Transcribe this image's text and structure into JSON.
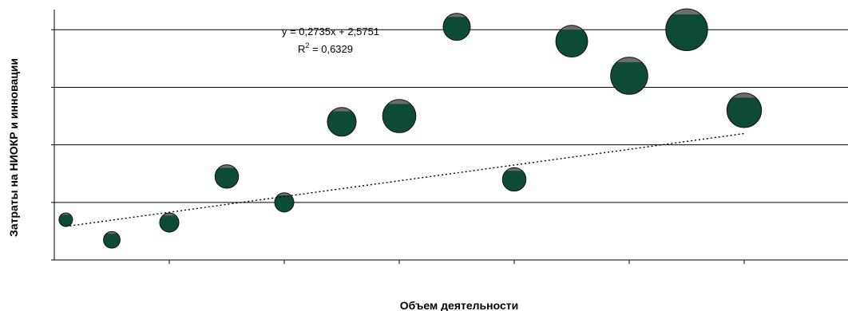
{
  "chart_data": {
    "type": "bubble",
    "xlabel": "Объем деятельности",
    "ylabel": "Затраты на НИОКР и инновации",
    "xlim": [
      0,
      7
    ],
    "ylim": [
      0,
      4.35
    ],
    "x_gridlines": [
      1,
      2,
      3,
      4,
      5,
      6
    ],
    "y_gridlines": [
      1,
      2,
      3,
      4
    ],
    "horizontal_grid": true,
    "tick_labels_shown": false,
    "trendline": {
      "style": "dotted",
      "slope": 0.2735,
      "intercept": 2.5751,
      "equation": "y = 0,2735x + 2,5751",
      "r2_prefix": "R",
      "r2_sup": "2",
      "r2_value": " = 0,6329"
    },
    "colors": {
      "bubble_fill": "#0e4a38",
      "bubble_highlight": "#6d6d6d",
      "bubble_edge": "#111111",
      "grid": "#000000",
      "trendline": "#000000"
    },
    "points": [
      {
        "x": 0.1,
        "y": 0.7,
        "size": 1.0
      },
      {
        "x": 0.5,
        "y": 0.35,
        "size": 1.5
      },
      {
        "x": 1.0,
        "y": 0.65,
        "size": 2.0
      },
      {
        "x": 1.5,
        "y": 1.45,
        "size": 3.0
      },
      {
        "x": 2.0,
        "y": 1.0,
        "size": 2.0
      },
      {
        "x": 2.5,
        "y": 2.4,
        "size": 4.5
      },
      {
        "x": 3.0,
        "y": 2.5,
        "size": 6.0
      },
      {
        "x": 3.5,
        "y": 4.05,
        "size": 4.0
      },
      {
        "x": 4.0,
        "y": 1.4,
        "size": 3.0
      },
      {
        "x": 4.5,
        "y": 3.8,
        "size": 5.5
      },
      {
        "x": 5.0,
        "y": 3.2,
        "size": 7.5
      },
      {
        "x": 5.5,
        "y": 4.0,
        "size": 9.5
      },
      {
        "x": 6.0,
        "y": 2.6,
        "size": 6.5
      }
    ]
  }
}
